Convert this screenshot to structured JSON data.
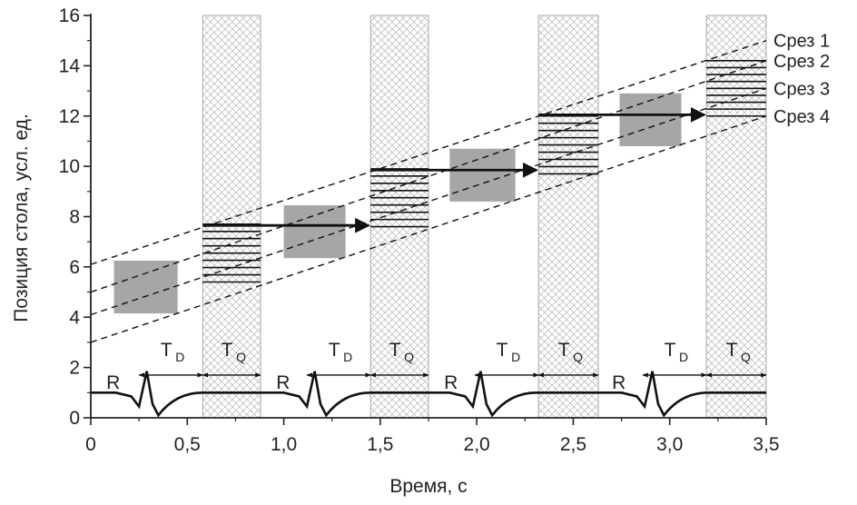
{
  "chart_data": {
    "type": "line",
    "title": "",
    "xlabel": "Время, с",
    "ylabel": "Позиция стола, усл. ед.",
    "xlim": [
      0,
      3.5
    ],
    "ylim": [
      0,
      16
    ],
    "x_ticks": [
      0,
      0.5,
      1.0,
      1.5,
      2.0,
      2.5,
      3.0,
      3.5
    ],
    "x_tick_labels": [
      "0",
      "0,5",
      "1,0",
      "1,5",
      "2,0",
      "2,5",
      "3,0",
      "3,5"
    ],
    "y_ticks": [
      0,
      2,
      4,
      6,
      8,
      10,
      12,
      14,
      16
    ],
    "y_tick_labels": [
      "0",
      "2",
      "4",
      "6",
      "8",
      "10",
      "12",
      "14",
      "16"
    ],
    "slices": [
      {
        "name": "Срез 1",
        "y_at_0": 6.1,
        "y_at_35": 15.0
      },
      {
        "name": "Срез 2",
        "y_at_0": 5.0,
        "y_at_35": 14.2
      },
      {
        "name": "Срез 3",
        "y_at_0": 4.1,
        "y_at_35": 13.1
      },
      {
        "name": "Срез 4",
        "y_at_0": 3.0,
        "y_at_35": 12.0
      }
    ],
    "acquisition_windows": [
      {
        "x0": 0.58,
        "x1": 0.88
      },
      {
        "x0": 1.45,
        "x1": 1.75
      },
      {
        "x0": 2.32,
        "x1": 2.63
      },
      {
        "x0": 3.19,
        "x1": 3.5
      }
    ],
    "table_moves": [
      {
        "x0": 0.58,
        "x1": 1.45,
        "y": 7.65
      },
      {
        "x0": 1.45,
        "x1": 2.32,
        "y": 9.85
      },
      {
        "x0": 2.32,
        "x1": 3.19,
        "y": 12.05
      }
    ],
    "acquired_slices": [
      {
        "x0": 0.58,
        "x1": 0.88,
        "y_top": 7.7,
        "y_bottom": 5.4
      },
      {
        "x0": 1.45,
        "x1": 1.75,
        "y_top": 9.9,
        "y_bottom": 7.6
      },
      {
        "x0": 2.32,
        "x1": 2.63,
        "y_top": 12.0,
        "y_bottom": 9.7
      },
      {
        "x0": 3.19,
        "x1": 3.5,
        "y_top": 14.2,
        "y_bottom": 12.0
      }
    ],
    "gray_blocks": [
      {
        "x0": 0.12,
        "x1": 0.45,
        "y0": 4.15,
        "y1": 6.25
      },
      {
        "x0": 1.0,
        "x1": 1.32,
        "y0": 6.35,
        "y1": 8.45
      },
      {
        "x0": 1.86,
        "x1": 2.2,
        "y0": 8.6,
        "y1": 10.7
      },
      {
        "x0": 2.74,
        "x1": 3.06,
        "y0": 10.8,
        "y1": 12.9
      }
    ],
    "ecg_cycles": [
      0.13,
      1.0,
      1.86,
      2.75
    ],
    "intervals": [
      {
        "r_x": 0.14,
        "td_x0": 0.25,
        "td_x1": 0.58,
        "tq_x0": 0.58,
        "tq_x1": 0.88
      },
      {
        "r_x": 1.02,
        "td_x0": 1.12,
        "td_x1": 1.45,
        "tq_x0": 1.45,
        "tq_x1": 1.75
      },
      {
        "r_x": 1.89,
        "td_x0": 1.99,
        "td_x1": 2.32,
        "tq_x0": 2.32,
        "tq_x1": 2.63
      },
      {
        "r_x": 2.76,
        "td_x0": 2.86,
        "td_x1": 3.19,
        "tq_x0": 3.19,
        "tq_x1": 3.5
      }
    ],
    "labels": {
      "r": "R",
      "td_main": "T",
      "td_sub": "D",
      "tq_main": "T",
      "tq_sub": "Q"
    },
    "interval_arrow_y": 1.7,
    "interval_label_y": 2.45,
    "colors": {
      "axis": "#222222",
      "gray_block": "#a6a6a6",
      "hatch": "#b0b0b0",
      "line": "#111111"
    }
  }
}
